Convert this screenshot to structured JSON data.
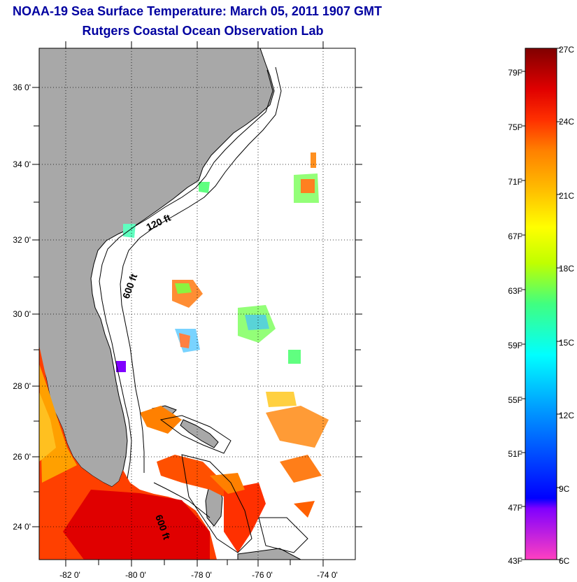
{
  "title": "NOAA-19 Sea Surface Temperature:  March 05, 2011 1907 GMT",
  "subtitle": "Rutgers Coastal Ocean Observation Lab",
  "map": {
    "lon_labels": [
      "-82 0'",
      "-80 0'",
      "-78 0'",
      "-76 0'",
      "-74 0'"
    ],
    "lat_labels": [
      "36 0'",
      "34 0'",
      "32 0'",
      "30 0'",
      "28 0'",
      "26 0'",
      "24 0'"
    ],
    "contour_labels": [
      "120 ft",
      "600 ft",
      "600 ft"
    ],
    "land_color": "#a8a8a8",
    "water_nodata_color": "#ffffff"
  },
  "colorbar": {
    "fahrenheit_labels": [
      "79F",
      "75F",
      "71F",
      "67F",
      "63F",
      "59F",
      "55F",
      "51F",
      "47F",
      "43F"
    ],
    "celsius_labels": [
      "27C",
      "24C",
      "21C",
      "18C",
      "15C",
      "12C",
      "9C",
      "6C"
    ],
    "colors": [
      "#ff40c0",
      "#8000ff",
      "#0000ff",
      "#00a0ff",
      "#00ffff",
      "#40ff80",
      "#c0ff00",
      "#ffff00",
      "#ffc000",
      "#ff8000",
      "#ff3000",
      "#e00000",
      "#800000"
    ]
  }
}
